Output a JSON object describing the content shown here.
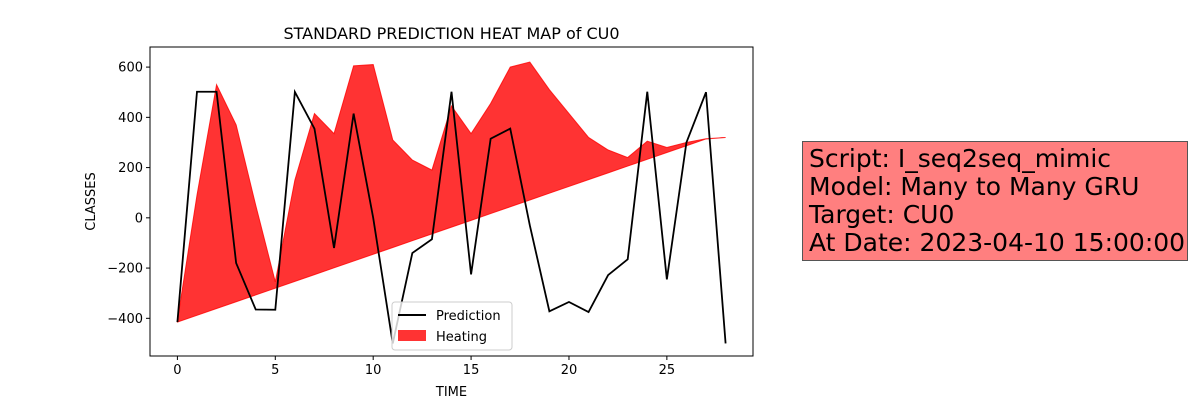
{
  "chart_data": {
    "type": "line",
    "title": "STANDARD PREDICTION HEAT MAP of CU0",
    "xlabel": "TIME",
    "ylabel": "CLASSES",
    "xlim": [
      -1.4,
      29.4
    ],
    "ylim": [
      -550,
      680
    ],
    "xticks": [
      0,
      5,
      10,
      15,
      20,
      25
    ],
    "yticks": [
      -400,
      -200,
      0,
      200,
      400,
      600
    ],
    "x": [
      0,
      1,
      2,
      3,
      4,
      5,
      6,
      7,
      8,
      9,
      10,
      11,
      12,
      13,
      14,
      15,
      16,
      17,
      18,
      19,
      20,
      21,
      22,
      23,
      24,
      25,
      26,
      27,
      28
    ],
    "series": [
      {
        "name": "Prediction",
        "kind": "line",
        "color": "#000000",
        "values": [
          -415,
          502,
          502,
          -180,
          -365,
          -366,
          501,
          355,
          -120,
          415,
          0,
          -500,
          -140,
          -85,
          502,
          -225,
          315,
          355,
          -30,
          -372,
          -335,
          -375,
          -228,
          -165,
          502,
          -245,
          300,
          500,
          -500
        ]
      },
      {
        "name": "Heating",
        "kind": "fill_between",
        "color": "#ff0000",
        "alpha": 0.8,
        "upper": [
          -410,
          90,
          530,
          370,
          50,
          -255,
          150,
          415,
          335,
          605,
          610,
          310,
          230,
          190,
          445,
          335,
          455,
          600,
          620,
          510,
          415,
          320,
          270,
          240,
          305,
          280,
          300,
          315,
          320
        ],
        "lower": [
          -415,
          -388,
          -361,
          -334,
          -307,
          -280,
          -253,
          -226,
          -199,
          -172,
          -145,
          -118,
          -91,
          -64,
          -37,
          -10,
          17,
          44,
          71,
          98,
          125,
          152,
          179,
          206,
          233,
          260,
          287,
          314,
          320
        ]
      }
    ],
    "legend": {
      "placement": "lower-center"
    },
    "grid": false
  },
  "info": {
    "lines": [
      "Script: I_seq2seq_mimic",
      "Model: Many to Many GRU",
      "Target: CU0",
      "At Date: 2023-04-10 15:00:00"
    ]
  }
}
